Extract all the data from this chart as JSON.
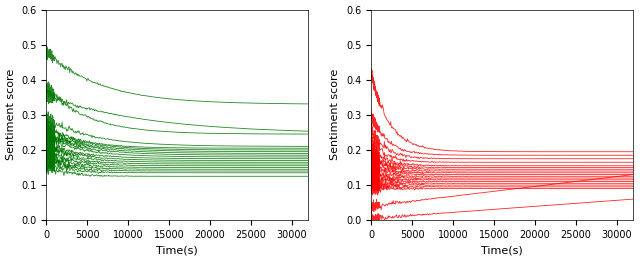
{
  "xlim": [
    0,
    32000
  ],
  "ylim": [
    0,
    0.6
  ],
  "xlabel": "Time(s)",
  "ylabel": "Sentiment score",
  "xticks": [
    0,
    5000,
    10000,
    15000,
    20000,
    25000,
    30000
  ],
  "yticks": [
    0,
    0.1,
    0.2,
    0.3,
    0.4,
    0.5,
    0.6
  ],
  "green_color": "#007700",
  "red_color": "#ff0000",
  "background_color": "#ffffff",
  "green_lines": [
    {
      "peak": 0.48,
      "final": 0.33,
      "decay": 0.00015
    },
    {
      "peak": 0.38,
      "final": 0.245,
      "decay": 0.0002
    },
    {
      "peak": 0.355,
      "final": 0.245,
      "decay": 8e-05
    },
    {
      "peak": 0.29,
      "final": 0.21,
      "decay": 0.00018
    },
    {
      "peak": 0.27,
      "final": 0.205,
      "decay": 0.00025
    },
    {
      "peak": 0.26,
      "final": 0.2,
      "decay": 0.00022
    },
    {
      "peak": 0.25,
      "final": 0.195,
      "decay": 0.0002
    },
    {
      "peak": 0.245,
      "final": 0.19,
      "decay": 0.0002
    },
    {
      "peak": 0.24,
      "final": 0.185,
      "decay": 0.0002
    },
    {
      "peak": 0.235,
      "final": 0.18,
      "decay": 0.00022
    },
    {
      "peak": 0.22,
      "final": 0.175,
      "decay": 0.00024
    },
    {
      "peak": 0.215,
      "final": 0.17,
      "decay": 0.00026
    },
    {
      "peak": 0.21,
      "final": 0.165,
      "decay": 0.00028
    },
    {
      "peak": 0.2,
      "final": 0.16,
      "decay": 0.0003
    },
    {
      "peak": 0.195,
      "final": 0.155,
      "decay": 0.00032
    },
    {
      "peak": 0.185,
      "final": 0.15,
      "decay": 0.00034
    },
    {
      "peak": 0.18,
      "final": 0.145,
      "decay": 0.00036
    },
    {
      "peak": 0.175,
      "final": 0.14,
      "decay": 0.00038
    },
    {
      "peak": 0.165,
      "final": 0.135,
      "decay": 0.0004
    },
    {
      "peak": 0.155,
      "final": 0.125,
      "decay": 0.00042
    }
  ],
  "red_lines": [
    {
      "peak": 0.42,
      "final": 0.195,
      "decay": 0.00045
    },
    {
      "peak": 0.3,
      "final": 0.185,
      "decay": 0.0005
    },
    {
      "peak": 0.26,
      "final": 0.175,
      "decay": 0.00055
    },
    {
      "peak": 0.23,
      "final": 0.165,
      "decay": 0.00058
    },
    {
      "peak": 0.21,
      "final": 0.155,
      "decay": 0.0006
    },
    {
      "peak": 0.2,
      "final": 0.15,
      "decay": 0.00062
    },
    {
      "peak": 0.19,
      "final": 0.145,
      "decay": 0.00065
    },
    {
      "peak": 0.185,
      "final": 0.14,
      "decay": 0.00067
    },
    {
      "peak": 0.175,
      "final": 0.135,
      "decay": 0.0007
    },
    {
      "peak": 0.165,
      "final": 0.13,
      "decay": 0.00072
    },
    {
      "peak": 0.155,
      "final": 0.125,
      "decay": 0.00074
    },
    {
      "peak": 0.145,
      "final": 0.12,
      "decay": 0.00076
    },
    {
      "peak": 0.135,
      "final": 0.115,
      "decay": 0.00078
    },
    {
      "peak": 0.125,
      "final": 0.11,
      "decay": 0.0008
    },
    {
      "peak": 0.115,
      "final": 0.105,
      "decay": 0.00082
    },
    {
      "peak": 0.105,
      "final": 0.1,
      "decay": 0.00085
    },
    {
      "peak": 0.095,
      "final": 0.095,
      "decay": 0.00088
    },
    {
      "peak": 0.085,
      "final": 0.09,
      "decay": 0.0009
    },
    {
      "peak": 0.04,
      "final": 0.13,
      "decay": -2e-05
    },
    {
      "peak": 0.005,
      "final": 0.06,
      "decay": -1.8e-05
    }
  ]
}
